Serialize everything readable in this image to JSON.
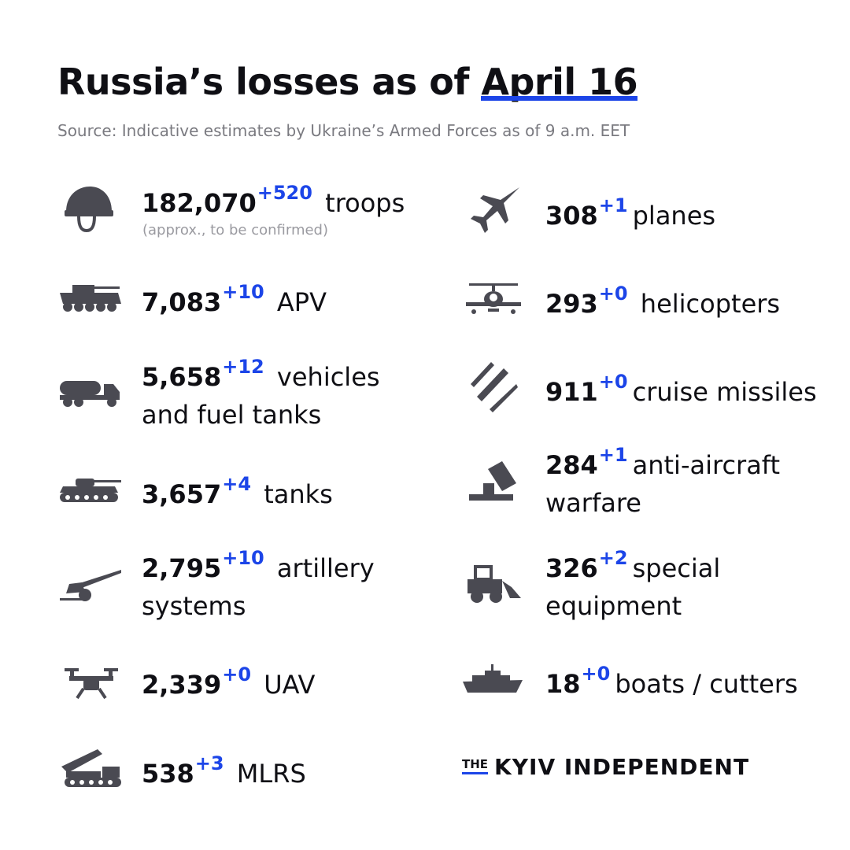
{
  "title": {
    "prefix": "Russia’s losses  as of ",
    "date": "April 16"
  },
  "source": "Source: Indicative estimates by Ukraine’s Armed Forces as of 9 a.m. EET",
  "accent_color": "#1c45e8",
  "left": [
    {
      "icon": "helmet-icon",
      "value": "182,070",
      "delta": "+520",
      "label": "troops",
      "note": "(approx., to be confirmed)"
    },
    {
      "icon": "apv-icon",
      "value": "7,083",
      "delta": "+10",
      "label": "APV"
    },
    {
      "icon": "fuel-truck-icon",
      "value": "5,658",
      "delta": "+12",
      "label": "vehicles",
      "label2": "and fuel tanks"
    },
    {
      "icon": "tank-icon",
      "value": "3,657",
      "delta": "+4",
      "label": "tanks"
    },
    {
      "icon": "artillery-icon",
      "value": "2,795",
      "delta": "+10",
      "label": "artillery",
      "label2": "systems"
    },
    {
      "icon": "drone-icon",
      "value": "2,339",
      "delta": "+0",
      "label": "UAV"
    },
    {
      "icon": "mlrs-icon",
      "value": "538",
      "delta": "+3",
      "label": "MLRS"
    }
  ],
  "right": [
    {
      "icon": "plane-icon",
      "value": "308",
      "delta": "+1",
      "label": "planes"
    },
    {
      "icon": "helicopter-icon",
      "value": "293",
      "delta": "+0",
      "label": "helicopters"
    },
    {
      "icon": "missiles-icon",
      "value": "911",
      "delta": "+0",
      "label": "cruise missiles"
    },
    {
      "icon": "anti-aircraft-icon",
      "value": "284",
      "delta": "+1",
      "label": "anti-aircraft",
      "label2": "warfare"
    },
    {
      "icon": "loader-icon",
      "value": "326",
      "delta": "+2",
      "label": "special",
      "label2": "equipment"
    },
    {
      "icon": "ship-icon",
      "value": "18",
      "delta": "+0",
      "label": "boats / cutters"
    }
  ],
  "brand": {
    "the": "THE",
    "name": "KYIV INDEPENDENT"
  }
}
